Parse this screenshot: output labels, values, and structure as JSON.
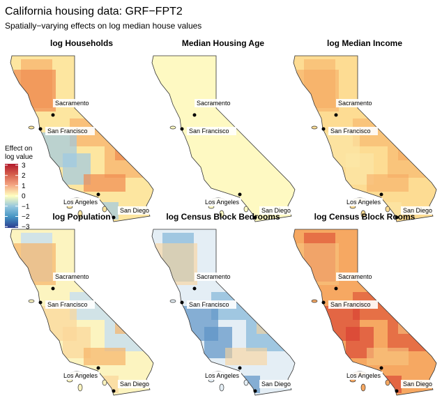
{
  "title": "California housing data: GRF−FPT2",
  "subtitle": "Spatially−varying effects on log median house values",
  "legend": {
    "title_line1": "Effect on",
    "title_line2": "log value",
    "ticks": [
      "3",
      "2",
      "1",
      "0",
      "−1",
      "−2",
      "−3"
    ],
    "colors": [
      "#b2182b",
      "#ef8a62",
      "#fddbc7",
      "#ffffbf",
      "#d1e5f0",
      "#67a9cf",
      "#2c3d8f"
    ]
  },
  "cities": [
    "Sacramento",
    "San Francisco",
    "Los Angeles",
    "San Diego"
  ],
  "panels": [
    {
      "title": "log Households",
      "base": "#fde6a0",
      "blobs": [
        [
          "#f6a760",
          0.6
        ],
        [
          "#9ec9e2",
          0.7
        ],
        [
          "#f08a50",
          0.7
        ]
      ]
    },
    {
      "title": "Median Housing Age",
      "base": "#fef9c2",
      "blobs": []
    },
    {
      "title": "log Median Income",
      "base": "#fddc93",
      "blobs": [
        [
          "#f7b46a",
          0.6
        ],
        [
          "#fbe7a8",
          0.6
        ],
        [
          "#f6a45e",
          0.5
        ]
      ]
    },
    {
      "title": "log Population",
      "base": "#fcf4c0",
      "blobs": [
        [
          "#c5def0",
          0.8
        ],
        [
          "#fbd59a",
          0.7
        ],
        [
          "#f7b46a",
          0.7
        ]
      ]
    },
    {
      "title": "log Census Block Bedrooms",
      "base": "#e4eef5",
      "blobs": [
        [
          "#8fbddc",
          0.8
        ],
        [
          "#5c93c6",
          0.7
        ],
        [
          "#fbd49a",
          0.6
        ]
      ]
    },
    {
      "title": "log Census Block Rooms",
      "base": "#f6a862",
      "blobs": [
        [
          "#e0583a",
          0.7
        ],
        [
          "#d73a30",
          0.6
        ],
        [
          "#f9c680",
          0.6
        ]
      ]
    }
  ]
}
